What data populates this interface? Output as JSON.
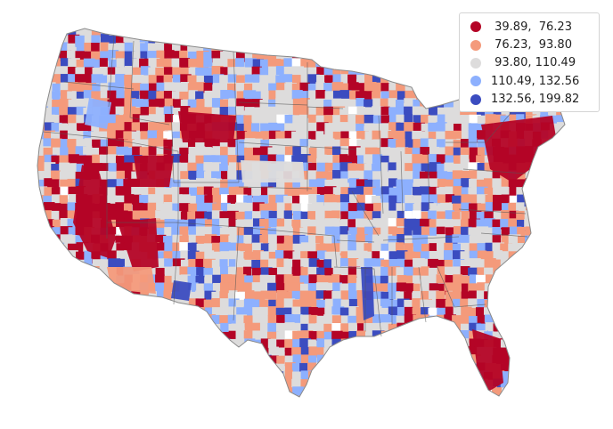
{
  "legend": {
    "entries": [
      {
        "label": " 39.89,  76.23",
        "color": "#b40426"
      },
      {
        "label": " 76.23,  93.80",
        "color": "#f49a7b"
      },
      {
        "label": " 93.80, 110.49",
        "color": "#dddcdc"
      },
      {
        "label": "110.49, 132.56",
        "color": "#8db0fe"
      },
      {
        "label": "132.56, 199.82",
        "color": "#3b4cc0"
      }
    ]
  },
  "map": {
    "type": "choropleth",
    "region": "contiguous United States (counties)",
    "no_data_color": "#ffffff",
    "boundary_color": "#555555"
  }
}
